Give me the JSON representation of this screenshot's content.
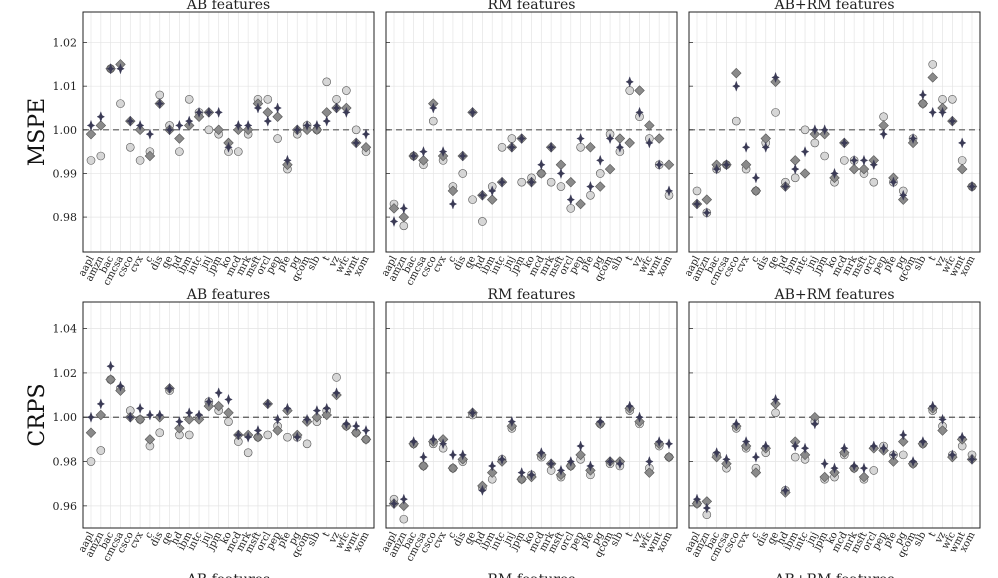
{
  "figure": {
    "bottom_labels": [
      "AB features",
      "RM features",
      "AB+RM features"
    ]
  },
  "chart_data": [
    {
      "type": "scatter",
      "id": "mspe-ab",
      "title": "AB features",
      "ylabel": "MSPE",
      "ylim": [
        0.972,
        1.027
      ],
      "yticks": [
        0.98,
        0.99,
        1.0,
        1.01,
        1.02
      ],
      "reference_line": 1.0,
      "grid": true,
      "categories": [
        "aapl",
        "amzn",
        "bac",
        "cmcsa",
        "csco",
        "cvx",
        "c",
        "dis",
        "ge",
        "hd",
        "ibm",
        "intc",
        "jnj",
        "jpm",
        "ko",
        "mcd",
        "mrk",
        "msft",
        "orcl",
        "pep",
        "pfe",
        "pg",
        "qcom",
        "slb",
        "t",
        "vz",
        "wfc",
        "wmt",
        "xom"
      ],
      "series": [
        {
          "name": "circle",
          "marker": "circle",
          "values": [
            0.993,
            0.994,
            1.014,
            1.006,
            0.996,
            0.993,
            0.995,
            1.008,
            1.001,
            0.995,
            1.007,
            1.004,
            1.0,
            0.999,
            0.995,
            0.995,
            0.999,
            1.007,
            1.007,
            0.998,
            0.991,
            0.999,
            1.001,
            1.0,
            1.011,
            1.007,
            1.009,
            1.0,
            0.995
          ]
        },
        {
          "name": "diamond",
          "marker": "diamond",
          "values": [
            0.999,
            1.001,
            1.014,
            1.015,
            1.002,
            1.0,
            0.994,
            1.006,
            1.0,
            0.998,
            1.001,
            1.003,
            1.004,
            1.0,
            0.997,
            1.0,
            1.0,
            1.006,
            1.004,
            1.003,
            0.992,
            1.0,
            1.0,
            1.0,
            1.004,
            1.005,
            1.005,
            0.997,
            0.996
          ]
        },
        {
          "name": "star",
          "marker": "star",
          "values": [
            1.001,
            1.003,
            1.014,
            1.014,
            1.002,
            1.001,
            0.999,
            1.006,
            1.0,
            1.001,
            1.002,
            1.004,
            1.004,
            1.004,
            0.996,
            1.001,
            1.001,
            1.005,
            1.002,
            1.005,
            0.993,
            1.0,
            1.001,
            1.001,
            1.002,
            1.005,
            1.004,
            0.997,
            0.999
          ]
        }
      ]
    },
    {
      "type": "scatter",
      "id": "mspe-rm",
      "title": "RM features",
      "ylabel": "",
      "ylim": [
        0.972,
        1.027
      ],
      "yticks": [
        0.98,
        0.99,
        1.0,
        1.01,
        1.02
      ],
      "reference_line": 1.0,
      "grid": true,
      "categories": [
        "aapl",
        "amzn",
        "bac",
        "cmcsa",
        "csco",
        "cvx",
        "c",
        "dis",
        "ge",
        "hd",
        "ibm",
        "intc",
        "jnj",
        "jpm",
        "ko",
        "mcd",
        "mrk",
        "msft",
        "orcl",
        "pep",
        "pfe",
        "pg",
        "qcom",
        "slb",
        "t",
        "vz",
        "wfc",
        "wmt",
        "xom"
      ],
      "series": [
        {
          "name": "circle",
          "marker": "circle",
          "values": [
            0.983,
            0.978,
            0.994,
            0.992,
            1.002,
            0.993,
            0.987,
            0.99,
            0.984,
            0.979,
            0.987,
            0.996,
            0.998,
            0.988,
            0.989,
            0.99,
            0.988,
            0.987,
            0.982,
            0.996,
            0.985,
            0.99,
            0.999,
            0.995,
            1.009,
            1.003,
            0.998,
            0.992,
            0.985
          ]
        },
        {
          "name": "diamond",
          "marker": "diamond",
          "values": [
            0.982,
            0.98,
            0.994,
            0.993,
            1.006,
            0.994,
            0.986,
            0.994,
            1.004,
            0.985,
            0.984,
            0.988,
            0.996,
            0.998,
            0.988,
            0.99,
            0.996,
            0.992,
            0.988,
            0.983,
            0.996,
            0.987,
            0.991,
            0.998,
            0.997,
            1.009,
            1.001,
            0.998,
            0.992
          ]
        },
        {
          "name": "star",
          "marker": "star",
          "values": [
            0.979,
            0.982,
            0.994,
            0.995,
            1.005,
            0.995,
            0.983,
            0.994,
            1.004,
            0.985,
            0.986,
            0.988,
            0.996,
            0.998,
            0.988,
            0.992,
            0.996,
            0.99,
            0.984,
            0.998,
            0.987,
            0.993,
            0.998,
            0.996,
            1.011,
            1.004,
            0.997,
            0.992,
            0.986
          ]
        }
      ]
    },
    {
      "type": "scatter",
      "id": "mspe-abrm",
      "title": "AB+RM features",
      "ylabel": "",
      "ylim": [
        0.972,
        1.027
      ],
      "yticks": [
        0.98,
        0.99,
        1.0,
        1.01,
        1.02
      ],
      "reference_line": 1.0,
      "grid": true,
      "categories": [
        "aapl",
        "amzn",
        "bac",
        "cmcsa",
        "csco",
        "cvx",
        "c",
        "dis",
        "ge",
        "hd",
        "ibm",
        "intc",
        "jnj",
        "jpm",
        "ko",
        "mcd",
        "mrk",
        "msft",
        "orcl",
        "pep",
        "pfe",
        "pg",
        "qcom",
        "slb",
        "t",
        "vz",
        "wfc",
        "wmt",
        "xom"
      ],
      "series": [
        {
          "name": "circle",
          "marker": "circle",
          "values": [
            0.986,
            0.981,
            0.991,
            0.992,
            1.002,
            0.991,
            0.986,
            0.997,
            1.004,
            0.988,
            0.989,
            1.0,
            0.997,
            0.994,
            0.988,
            0.993,
            0.993,
            0.99,
            0.988,
            1.003,
            0.988,
            0.986,
            0.998,
            1.006,
            1.015,
            1.007,
            1.007,
            0.993,
            0.987
          ]
        },
        {
          "name": "diamond",
          "marker": "diamond",
          "values": [
            0.983,
            0.984,
            0.992,
            0.992,
            1.013,
            0.992,
            0.986,
            0.998,
            1.011,
            0.987,
            0.993,
            0.99,
            0.999,
            0.999,
            0.989,
            0.997,
            0.991,
            0.991,
            0.993,
            1.001,
            0.989,
            0.984,
            0.997,
            1.006,
            1.012,
            1.005,
            1.002,
            0.991,
            0.987
          ]
        },
        {
          "name": "star",
          "marker": "star",
          "values": [
            0.983,
            0.981,
            0.991,
            0.992,
            1.01,
            0.996,
            0.989,
            0.996,
            1.012,
            0.987,
            0.991,
            0.995,
            1.0,
            1.0,
            0.99,
            0.997,
            0.993,
            0.993,
            0.992,
            0.999,
            0.988,
            0.985,
            0.998,
            1.008,
            1.004,
            1.004,
            1.002,
            0.997,
            0.987
          ]
        }
      ]
    },
    {
      "type": "scatter",
      "id": "crps-ab",
      "title": "AB features",
      "ylabel": "CRPS",
      "ylim": [
        0.95,
        1.052
      ],
      "yticks": [
        0.96,
        0.98,
        1.0,
        1.02,
        1.04
      ],
      "reference_line": 1.0,
      "grid": true,
      "categories": [
        "aapl",
        "amzn",
        "bac",
        "cmcsa",
        "csco",
        "cvx",
        "c",
        "dis",
        "ge",
        "hd",
        "ibm",
        "intc",
        "jnj",
        "jpm",
        "ko",
        "mcd",
        "mrk",
        "msft",
        "orcl",
        "pep",
        "pfe",
        "pg",
        "qcom",
        "slb",
        "t",
        "vz",
        "wfc",
        "wmt",
        "xom"
      ],
      "series": [
        {
          "name": "circle",
          "marker": "circle",
          "values": [
            0.98,
            0.985,
            1.017,
            1.013,
            1.003,
            0.999,
            0.987,
            0.993,
            1.012,
            0.992,
            0.992,
            1.0,
            1.007,
            1.003,
            0.998,
            0.989,
            0.984,
            0.991,
            0.992,
            0.996,
            0.991,
            0.991,
            0.988,
            0.998,
            1.003,
            1.018,
            0.996,
            0.993,
            0.99
          ]
        },
        {
          "name": "diamond",
          "marker": "diamond",
          "values": [
            0.993,
            1.001,
            1.017,
            1.012,
            1.0,
            0.999,
            0.99,
            1.0,
            1.013,
            0.995,
            0.999,
            0.999,
            1.005,
            1.005,
            1.002,
            0.992,
            0.992,
            0.991,
            1.006,
            0.994,
            1.003,
            0.992,
            0.998,
            1.0,
            1.001,
            1.01,
            0.996,
            0.993,
            0.99
          ]
        },
        {
          "name": "star",
          "marker": "star",
          "values": [
            1.0,
            1.006,
            1.023,
            1.014,
            1.0,
            1.004,
            1.001,
            1.001,
            1.013,
            0.998,
            1.002,
            1.001,
            1.007,
            1.011,
            1.008,
            0.992,
            0.991,
            0.994,
            1.006,
            0.999,
            1.004,
            0.991,
            0.999,
            1.003,
            1.004,
            1.011,
            0.997,
            0.996,
            0.994
          ]
        }
      ]
    },
    {
      "type": "scatter",
      "id": "crps-rm",
      "title": "RM features",
      "ylabel": "",
      "ylim": [
        0.95,
        1.052
      ],
      "yticks": [
        0.96,
        0.98,
        1.0,
        1.02,
        1.04
      ],
      "reference_line": 1.0,
      "grid": true,
      "categories": [
        "aapl",
        "amzn",
        "bac",
        "cmcsa",
        "csco",
        "cvx",
        "c",
        "dis",
        "ge",
        "hd",
        "ibm",
        "intc",
        "jnj",
        "jpm",
        "ko",
        "mcd",
        "mrk",
        "msft",
        "orcl",
        "pep",
        "pfe",
        "pg",
        "qcom",
        "slb",
        "t",
        "vz",
        "wfc",
        "wmt",
        "xom"
      ],
      "series": [
        {
          "name": "circle",
          "marker": "circle",
          "values": [
            0.963,
            0.954,
            0.988,
            0.978,
            0.988,
            0.986,
            0.977,
            0.98,
            1.001,
            0.968,
            0.972,
            0.981,
            0.995,
            0.972,
            0.974,
            0.982,
            0.976,
            0.973,
            0.978,
            0.981,
            0.974,
            0.997,
            0.979,
            0.978,
            1.003,
            0.997,
            0.977,
            0.987,
            0.982
          ]
        },
        {
          "name": "diamond",
          "marker": "diamond",
          "values": [
            0.961,
            0.96,
            0.988,
            0.978,
            0.989,
            0.99,
            0.977,
            0.981,
            1.002,
            0.969,
            0.975,
            0.98,
            0.996,
            0.972,
            0.973,
            0.983,
            0.979,
            0.974,
            0.978,
            0.983,
            0.976,
            0.997,
            0.98,
            0.98,
            1.004,
            0.998,
            0.975,
            0.988,
            0.982
          ]
        },
        {
          "name": "star",
          "marker": "star",
          "values": [
            0.961,
            0.963,
            0.989,
            0.982,
            0.99,
            0.988,
            0.983,
            0.983,
            1.002,
            0.967,
            0.978,
            0.981,
            0.998,
            0.975,
            0.974,
            0.984,
            0.979,
            0.976,
            0.98,
            0.987,
            0.978,
            0.998,
            0.98,
            0.979,
            1.005,
            1.0,
            0.98,
            0.989,
            0.988
          ]
        }
      ]
    },
    {
      "type": "scatter",
      "id": "crps-abrm",
      "title": "AB+RM features",
      "ylabel": "",
      "ylim": [
        0.95,
        1.052
      ],
      "yticks": [
        0.96,
        0.98,
        1.0,
        1.02,
        1.04
      ],
      "reference_line": 1.0,
      "grid": true,
      "categories": [
        "aapl",
        "amzn",
        "bac",
        "cmcsa",
        "csco",
        "cvx",
        "c",
        "dis",
        "ge",
        "hd",
        "ibm",
        "intc",
        "jnj",
        "jpm",
        "ko",
        "mcd",
        "mrk",
        "msft",
        "orcl",
        "pep",
        "pfe",
        "pg",
        "qcom",
        "slb",
        "t",
        "vz",
        "wfc",
        "wmt",
        "xom"
      ],
      "series": [
        {
          "name": "circle",
          "marker": "circle",
          "values": [
            0.961,
            0.956,
            0.983,
            0.977,
            0.995,
            0.986,
            0.977,
            0.984,
            1.002,
            0.967,
            0.982,
            0.981,
            0.998,
            0.972,
            0.973,
            0.983,
            0.977,
            0.972,
            0.976,
            0.987,
            0.983,
            0.983,
            0.979,
            0.988,
            1.003,
            0.996,
            0.983,
            0.987,
            0.983
          ]
        },
        {
          "name": "diamond",
          "marker": "diamond",
          "values": [
            0.961,
            0.962,
            0.982,
            0.979,
            0.996,
            0.987,
            0.975,
            0.986,
            1.006,
            0.966,
            0.989,
            0.983,
            1.0,
            0.973,
            0.975,
            0.984,
            0.977,
            0.973,
            0.986,
            0.985,
            0.98,
            0.989,
            0.979,
            0.988,
            1.004,
            0.994,
            0.982,
            0.99,
            0.981
          ]
        },
        {
          "name": "star",
          "marker": "star",
          "values": [
            0.963,
            0.959,
            0.984,
            0.981,
            0.997,
            0.989,
            0.982,
            0.987,
            1.008,
            0.967,
            0.987,
            0.986,
            0.997,
            0.979,
            0.977,
            0.986,
            0.978,
            0.977,
            0.987,
            0.986,
            0.983,
            0.992,
            0.98,
            0.989,
            1.005,
            0.999,
            0.983,
            0.991,
            0.981
          ]
        }
      ]
    }
  ],
  "style": {
    "circle_fill": "#d6d6d6",
    "diamond_fill": "#8a8a8a",
    "star_fill": "#3a3a55",
    "marker_stroke": "#555555",
    "grid_color": "#e4e4e4",
    "ref_line_color": "#555555"
  }
}
